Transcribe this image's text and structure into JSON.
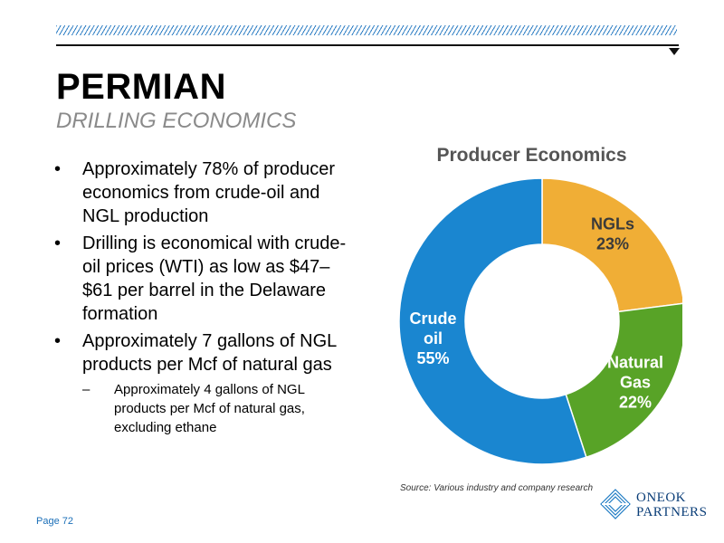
{
  "header": {
    "title": "PERMIAN",
    "subtitle": "DRILLING ECONOMICS"
  },
  "bullets": [
    {
      "text": "Approximately 78% of producer economics from crude-oil and NGL production"
    },
    {
      "text": "Drilling is economical with crude-oil prices (WTI) as low as $47–$61 per barrel in the Delaware formation"
    },
    {
      "text": "Approximately 7 gallons of NGL products per Mcf of natural gas"
    }
  ],
  "sub_bullet": "Approximately 4 gallons of NGL products per Mcf of natural gas, excluding ethane",
  "source": "Source: Various industry and company research",
  "page": "Page 72",
  "logo": {
    "line1": "ONEOK",
    "line2": "PARTNERS"
  },
  "colors": {
    "crude": "#1a86d0",
    "ngls": "#f0ae36",
    "gas": "#58a327",
    "accent": "#2f7fc4"
  },
  "chart_data": {
    "type": "pie",
    "title": "Producer Economics",
    "donut": true,
    "slices": [
      {
        "label": "NGLs",
        "value": 23,
        "value_label": "23%",
        "color": "#f0ae36"
      },
      {
        "label": "Natural Gas",
        "value": 22,
        "value_label": "22%",
        "color": "#58a327"
      },
      {
        "label": "Crude oil",
        "value": 55,
        "value_label": "55%",
        "color": "#1a86d0"
      }
    ]
  }
}
